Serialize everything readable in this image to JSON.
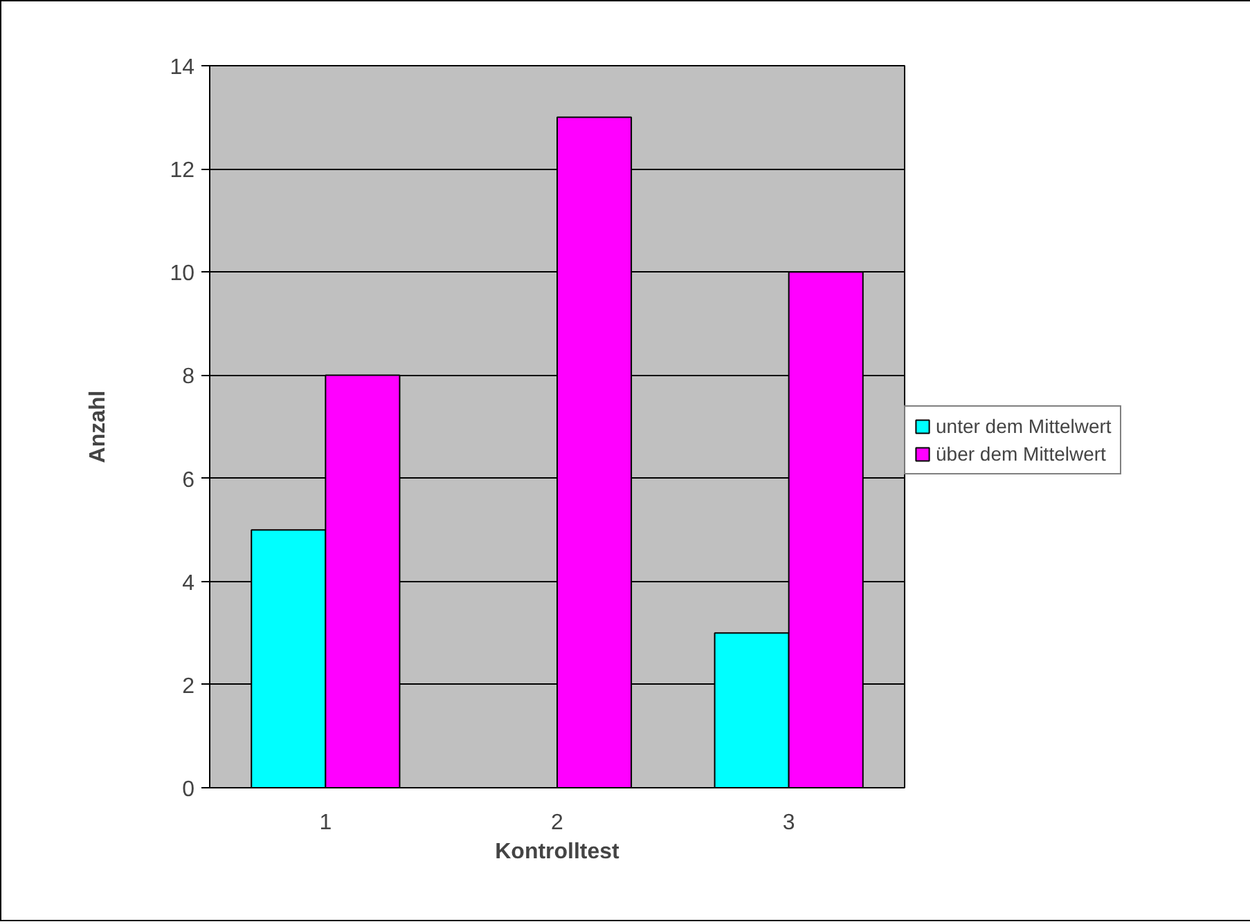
{
  "chart_data": {
    "type": "bar",
    "xlabel": "Kontrolltest",
    "ylabel": "Anzahl",
    "categories": [
      "1",
      "2",
      "3"
    ],
    "series": [
      {
        "name": "unter dem Mittelwert",
        "color": "#00ffff",
        "values": [
          5,
          null,
          3
        ]
      },
      {
        "name": "über dem Mittelwert",
        "color": "#ff00ff",
        "values": [
          8,
          13,
          10
        ]
      }
    ],
    "ylim": [
      0,
      14
    ],
    "yticks": [
      0,
      2,
      4,
      6,
      8,
      10,
      12,
      14
    ],
    "grid": "y",
    "legend": "right"
  }
}
